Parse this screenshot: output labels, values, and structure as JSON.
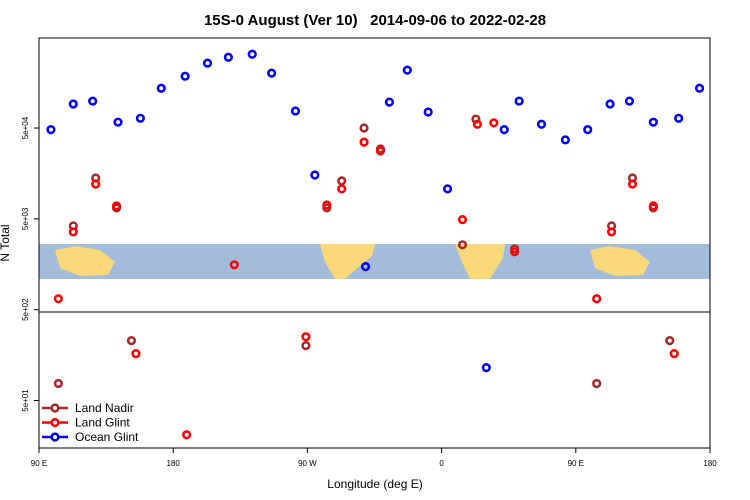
{
  "chart_data": {
    "type": "scatter",
    "title": "15S-0 August (Ver 10)   2014-09-06 to 2022-02-28",
    "x_label": "Longitude (deg E)",
    "y_label": "N Total",
    "log_y": true,
    "xlim": [
      90,
      540
    ],
    "ylim": [
      15,
      490000
    ],
    "xticks": [
      {
        "value": 90,
        "label": "90 E"
      },
      180,
      {
        "value": 270,
        "label": "90 W"
      },
      {
        "value": 360,
        "label": "0"
      },
      {
        "value": 450,
        "label": "90 E"
      },
      {
        "value": 540,
        "label": "180"
      }
    ],
    "yticks": [
      {
        "value": 50,
        "label": "5e+01"
      },
      {
        "value": 500,
        "label": "5e+02"
      },
      {
        "value": 5000,
        "label": "5e+03"
      },
      {
        "value": 50000,
        "label": "5e+04"
      }
    ],
    "legend": "bottom-left",
    "series": [
      {
        "name": "Land Nadir",
        "color": "#a52a2a",
        "x": [
          103,
          113,
          128,
          142,
          152,
          269,
          283,
          293,
          308,
          319,
          374,
          383,
          409,
          464,
          474,
          488,
          502,
          513
        ],
        "values": [
          77,
          4190,
          14100,
          6600,
          228,
          201,
          6600,
          13100,
          50000,
          29400,
          2590,
          62800,
          2340,
          77,
          4190,
          14100,
          6600,
          228
        ]
      },
      {
        "name": "Land Glint",
        "color": "#ff0000",
        "x": [
          103,
          113,
          128,
          142,
          155,
          189,
          221,
          269,
          283,
          293,
          308,
          319,
          374,
          384,
          395,
          409,
          464,
          474,
          488,
          502,
          516
        ],
        "values": [
          660,
          3600,
          12100,
          6950,
          164,
          21,
          1560,
          252,
          7100,
          10700,
          35000,
          28000,
          4900,
          55000,
          57000,
          2170,
          660,
          3600,
          12100,
          6950,
          164
        ]
      },
      {
        "name": "Ocean Glint",
        "color": "#0000ff",
        "x": [
          98,
          113,
          126,
          143,
          158,
          172,
          188,
          203,
          217,
          233,
          246,
          262,
          275,
          309,
          325,
          337,
          351,
          364,
          390,
          402,
          412,
          427,
          443,
          458,
          473,
          486,
          502,
          519,
          533
        ],
        "values": [
          48000,
          92000,
          99000,
          58000,
          64000,
          137000,
          186000,
          259000,
          301000,
          325000,
          201000,
          77000,
          15200,
          1490,
          96500,
          217000,
          75000,
          10700,
          115,
          48000,
          99000,
          55000,
          37000,
          48000,
          92000,
          99000,
          58000,
          64000,
          137000
        ]
      }
    ]
  }
}
